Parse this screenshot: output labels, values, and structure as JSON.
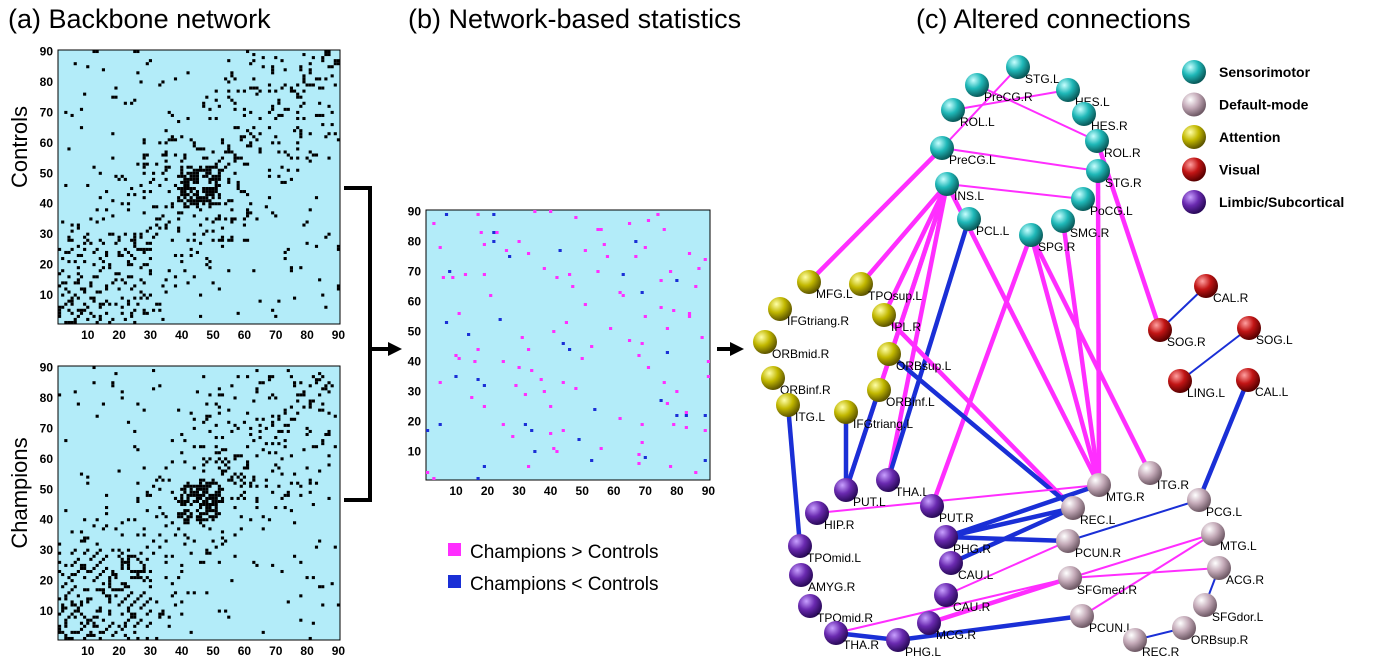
{
  "panels": {
    "a": {
      "title": "(a)  Backbone network"
    },
    "b": {
      "title": "(b)  Network-based statistics"
    },
    "c": {
      "title": "(c)  Altered connections"
    }
  },
  "row_labels": {
    "controls": "Controls",
    "champions": "Champions"
  },
  "matrix_ticks": [
    "10",
    "20",
    "30",
    "40",
    "50",
    "60",
    "70",
    "80",
    "90"
  ],
  "nbs_legend": {
    "greater": "Champions > Controls",
    "less": "Champions < Controls"
  },
  "colors": {
    "matrix_bg": "#b3ecf9",
    "increase": "#ff2eff",
    "decrease": "#1a2fd6",
    "sensorimotor": "#1fb8b8",
    "default_mode": "#c4aab8",
    "attention": "#c2b800",
    "visual": "#c21515",
    "limbic": "#6a2ab0"
  },
  "network_legend": [
    {
      "key": "sensorimotor",
      "label": "Sensorimotor"
    },
    {
      "key": "default_mode",
      "label": "Default-mode"
    },
    {
      "key": "attention",
      "label": "Attention"
    },
    {
      "key": "visual",
      "label": "Visual"
    },
    {
      "key": "limbic",
      "label": "Limbic/Subcortical"
    }
  ],
  "nodes": [
    {
      "id": "STG.L",
      "g": "sensorimotor"
    },
    {
      "id": "PreCG.R",
      "g": "sensorimotor"
    },
    {
      "id": "HES.L",
      "g": "sensorimotor"
    },
    {
      "id": "ROL.L",
      "g": "sensorimotor"
    },
    {
      "id": "HES.R",
      "g": "sensorimotor"
    },
    {
      "id": "ROL.R",
      "g": "sensorimotor"
    },
    {
      "id": "PreCG.L",
      "g": "sensorimotor"
    },
    {
      "id": "STG.R",
      "g": "sensorimotor"
    },
    {
      "id": "INS.L",
      "g": "sensorimotor"
    },
    {
      "id": "PoCG.L",
      "g": "sensorimotor"
    },
    {
      "id": "PCL.L",
      "g": "sensorimotor"
    },
    {
      "id": "SMG.R",
      "g": "sensorimotor"
    },
    {
      "id": "SPG.R",
      "g": "sensorimotor"
    },
    {
      "id": "MFG.L",
      "g": "attention"
    },
    {
      "id": "TPOsup.L",
      "g": "attention"
    },
    {
      "id": "IFGtriang.R",
      "g": "attention"
    },
    {
      "id": "IPL.R",
      "g": "attention"
    },
    {
      "id": "ORBmid.R",
      "g": "attention"
    },
    {
      "id": "ORBsup.L",
      "g": "attention"
    },
    {
      "id": "ORBinf.R",
      "g": "attention"
    },
    {
      "id": "ORBinf.L",
      "g": "attention"
    },
    {
      "id": "ITG.L",
      "g": "attention"
    },
    {
      "id": "IFGtriang.L",
      "g": "attention"
    },
    {
      "id": "CAL.R",
      "g": "visual"
    },
    {
      "id": "SOG.R",
      "g": "visual"
    },
    {
      "id": "SOG.L",
      "g": "visual"
    },
    {
      "id": "LING.L",
      "g": "visual"
    },
    {
      "id": "CAL.L",
      "g": "visual"
    },
    {
      "id": "PUT.L",
      "g": "limbic"
    },
    {
      "id": "THA.L",
      "g": "limbic"
    },
    {
      "id": "PUT.R",
      "g": "limbic"
    },
    {
      "id": "HIP.R",
      "g": "limbic"
    },
    {
      "id": "PHG.R",
      "g": "limbic"
    },
    {
      "id": "TPOmid.L",
      "g": "limbic"
    },
    {
      "id": "CAU.L",
      "g": "limbic"
    },
    {
      "id": "AMYG.R",
      "g": "limbic"
    },
    {
      "id": "CAU.R",
      "g": "limbic"
    },
    {
      "id": "TPOmid.R",
      "g": "limbic"
    },
    {
      "id": "MCG.R",
      "g": "limbic"
    },
    {
      "id": "THA.R",
      "g": "limbic"
    },
    {
      "id": "PHG.L",
      "g": "limbic"
    },
    {
      "id": "ITG.R",
      "g": "default_mode"
    },
    {
      "id": "MTG.R",
      "g": "default_mode"
    },
    {
      "id": "PCG.L",
      "g": "default_mode"
    },
    {
      "id": "REC.L",
      "g": "default_mode"
    },
    {
      "id": "MTG.L",
      "g": "default_mode"
    },
    {
      "id": "PCUN.R",
      "g": "default_mode"
    },
    {
      "id": "ACG.R",
      "g": "default_mode"
    },
    {
      "id": "SFGmed.R",
      "g": "default_mode"
    },
    {
      "id": "SFGdor.L",
      "g": "default_mode"
    },
    {
      "id": "PCUN.L",
      "g": "default_mode"
    },
    {
      "id": "ORBsup.R",
      "g": "default_mode"
    },
    {
      "id": "REC.R",
      "g": "default_mode"
    }
  ],
  "edges": [
    {
      "a": "STG.L",
      "b": "PreCG.L",
      "t": "inc",
      "w": 1
    },
    {
      "a": "PreCG.R",
      "b": "ROL.R",
      "t": "inc",
      "w": 1
    },
    {
      "a": "HES.L",
      "b": "ROL.L",
      "t": "inc",
      "w": 1
    },
    {
      "a": "PreCG.L",
      "b": "STG.R",
      "t": "inc",
      "w": 1
    },
    {
      "a": "INS.L",
      "b": "PoCG.L",
      "t": "inc",
      "w": 1
    },
    {
      "a": "PreCG.L",
      "b": "MFG.L",
      "t": "inc",
      "w": 2
    },
    {
      "a": "INS.L",
      "b": "TPOsup.L",
      "t": "inc",
      "w": 2
    },
    {
      "a": "INS.L",
      "b": "IPL.R",
      "t": "inc",
      "w": 2
    },
    {
      "a": "INS.L",
      "b": "ORBinf.L",
      "t": "inc",
      "w": 2
    },
    {
      "a": "INS.L",
      "b": "PUT.L",
      "t": "inc",
      "w": 2
    },
    {
      "a": "INS.L",
      "b": "THA.L",
      "t": "inc",
      "w": 2
    },
    {
      "a": "INS.L",
      "b": "MTG.R",
      "t": "inc",
      "w": 2
    },
    {
      "a": "PCL.L",
      "b": "THA.L",
      "t": "dec",
      "w": 2
    },
    {
      "a": "SPG.R",
      "b": "PUT.R",
      "t": "inc",
      "w": 2
    },
    {
      "a": "SPG.R",
      "b": "MTG.R",
      "t": "inc",
      "w": 2
    },
    {
      "a": "SPG.R",
      "b": "ITG.R",
      "t": "inc",
      "w": 2
    },
    {
      "a": "SMG.R",
      "b": "MTG.R",
      "t": "inc",
      "w": 2
    },
    {
      "a": "STG.R",
      "b": "MTG.R",
      "t": "inc",
      "w": 2
    },
    {
      "a": "ROL.R",
      "b": "SOG.R",
      "t": "inc",
      "w": 2
    },
    {
      "a": "IPL.R",
      "b": "REC.L",
      "t": "inc",
      "w": 2
    },
    {
      "a": "ORBsup.L",
      "b": "REC.L",
      "t": "dec",
      "w": 2
    },
    {
      "a": "ITG.L",
      "b": "TPOmid.L",
      "t": "dec",
      "w": 2
    },
    {
      "a": "IFGtriang.L",
      "b": "PUT.L",
      "t": "dec",
      "w": 2
    },
    {
      "a": "ORBinf.L",
      "b": "PUT.L",
      "t": "dec",
      "w": 2
    },
    {
      "a": "CAL.R",
      "b": "SOG.R",
      "t": "dec",
      "w": 1
    },
    {
      "a": "SOG.L",
      "b": "LING.L",
      "t": "dec",
      "w": 1
    },
    {
      "a": "CAL.L",
      "b": "PCG.L",
      "t": "dec",
      "w": 2
    },
    {
      "a": "HIP.R",
      "b": "MTG.R",
      "t": "inc",
      "w": 1
    },
    {
      "a": "PHG.R",
      "b": "REC.L",
      "t": "dec",
      "w": 2
    },
    {
      "a": "PHG.R",
      "b": "MTG.R",
      "t": "dec",
      "w": 2
    },
    {
      "a": "PHG.R",
      "b": "PCUN.R",
      "t": "dec",
      "w": 2
    },
    {
      "a": "CAU.L",
      "b": "REC.L",
      "t": "dec",
      "w": 2
    },
    {
      "a": "PCUN.R",
      "b": "PCG.L",
      "t": "dec",
      "w": 1
    },
    {
      "a": "SFGmed.R",
      "b": "MTG.L",
      "t": "inc",
      "w": 1
    },
    {
      "a": "SFGmed.R",
      "b": "ACG.R",
      "t": "inc",
      "w": 1
    },
    {
      "a": "THA.R",
      "b": "SFGmed.R",
      "t": "inc",
      "w": 1
    },
    {
      "a": "MCG.R",
      "b": "SFGmed.R",
      "t": "inc",
      "w": 2
    },
    {
      "a": "PHG.L",
      "b": "PCUN.L",
      "t": "dec",
      "w": 2
    },
    {
      "a": "THA.R",
      "b": "PHG.L",
      "t": "dec",
      "w": 2
    },
    {
      "a": "PCUN.L",
      "b": "MTG.L",
      "t": "inc",
      "w": 1
    },
    {
      "a": "REC.R",
      "b": "ORBsup.R",
      "t": "dec",
      "w": 1
    },
    {
      "a": "ACG.R",
      "b": "SFGdor.L",
      "t": "dec",
      "w": 1
    },
    {
      "a": "CAU.R",
      "b": "PCUN.R",
      "t": "inc",
      "w": 1
    }
  ]
}
